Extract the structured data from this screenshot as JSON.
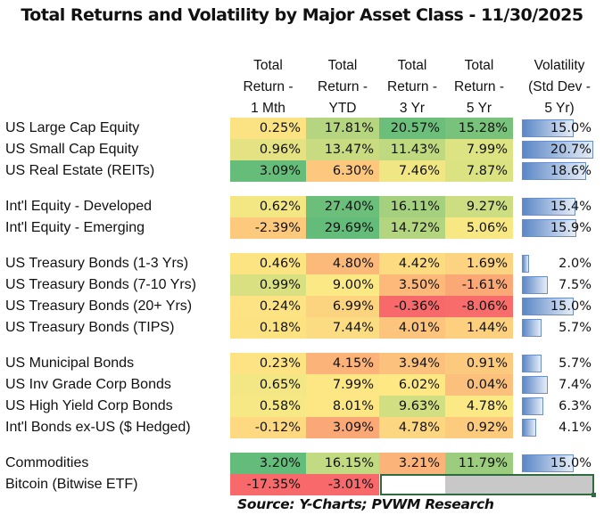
{
  "title": "Total Returns and Volatility by Major Asset Class - 11/30/2025",
  "headers": [
    {
      "l1": "Total",
      "l2": "Return -",
      "l3": "1 Mth"
    },
    {
      "l1": "Total",
      "l2": "Return -",
      "l3": "YTD"
    },
    {
      "l1": "Total",
      "l2": "Return -",
      "l3": "3 Yr"
    },
    {
      "l1": "Total",
      "l2": "Return -",
      "l3": "5 Yr"
    },
    {
      "l1": "Volatility",
      "l2": "(Std Dev -",
      "l3": "5 Yr)"
    }
  ],
  "rows": [
    {
      "label": "US Large Cap Equity",
      "m1": "0.25%",
      "ytd": "17.81%",
      "y3": "20.57%",
      "y5": "15.28%",
      "vol": "15.0%",
      "vol_value": 15.0,
      "colors": [
        "#fbe383",
        "#b5d580",
        "#6cbf7b",
        "#78c27c"
      ]
    },
    {
      "label": "US Small Cap Equity",
      "m1": "0.96%",
      "ytd": "13.47%",
      "y3": "11.43%",
      "y5": "7.99%",
      "vol": "20.7%",
      "vol_value": 20.7,
      "colors": [
        "#e4e283",
        "#c8db81",
        "#bfd981",
        "#dde282"
      ]
    },
    {
      "label": "US Real Estate (REITs)",
      "m1": "3.09%",
      "ytd": "6.30%",
      "y3": "7.46%",
      "y5": "7.87%",
      "vol": "18.6%",
      "vol_value": 18.6,
      "colors": [
        "#66bd7a",
        "#fdc77d",
        "#f0e684",
        "#dbe282"
      ]
    },
    {
      "label": "Int'l Equity - Developed",
      "m1": "0.62%",
      "ytd": "27.40%",
      "y3": "16.11%",
      "y5": "9.27%",
      "vol": "15.4%",
      "vol_value": 15.4,
      "colors": [
        "#f3e784",
        "#6cbf7b",
        "#a5d17f",
        "#cddd82"
      ]
    },
    {
      "label": "Int'l Equity - Emerging",
      "m1": "-2.39%",
      "ytd": "29.69%",
      "y3": "14.72%",
      "y5": "5.06%",
      "vol": "15.9%",
      "vol_value": 15.9,
      "colors": [
        "#fcc97d",
        "#63bc7a",
        "#b4d580",
        "#f7e884"
      ]
    },
    {
      "label": "US Treasury Bonds (1-3 Yrs)",
      "m1": "0.46%",
      "ytd": "4.80%",
      "y3": "4.42%",
      "y5": "1.69%",
      "vol": "2.0%",
      "vol_value": 2.0,
      "colors": [
        "#fde483",
        "#fbb97a",
        "#fddb81",
        "#fcd380"
      ]
    },
    {
      "label": "US Treasury Bonds (7-10 Yrs)",
      "m1": "0.99%",
      "ytd": "9.00%",
      "y3": "3.50%",
      "y5": "-1.61%",
      "vol": "7.5%",
      "vol_value": 7.5,
      "colors": [
        "#d8e082",
        "#fbe985",
        "#fcb97a",
        "#fba877"
      ]
    },
    {
      "label": "US Treasury Bonds (20+ Yrs)",
      "m1": "0.24%",
      "ytd": "6.99%",
      "y3": "-0.36%",
      "y5": "-8.06%",
      "vol": "15.0%",
      "vol_value": 15.0,
      "colors": [
        "#fde383",
        "#fcd37f",
        "#f8696b",
        "#f86d6c"
      ]
    },
    {
      "label": "US Treasury Bonds (TIPS)",
      "m1": "0.18%",
      "ytd": "7.44%",
      "y3": "4.01%",
      "y5": "1.44%",
      "vol": "5.7%",
      "vol_value": 5.7,
      "colors": [
        "#fde282",
        "#fcdc82",
        "#fcc47c",
        "#fcd07f"
      ]
    },
    {
      "label": "US Municipal Bonds",
      "m1": "0.23%",
      "ytd": "4.15%",
      "y3": "3.94%",
      "y5": "0.91%",
      "vol": "5.7%",
      "vol_value": 5.7,
      "colors": [
        "#fde383",
        "#fbb379",
        "#fcc17c",
        "#fcca7e"
      ]
    },
    {
      "label": "US Inv Grade Corp Bonds",
      "m1": "0.65%",
      "ytd": "7.99%",
      "y3": "6.02%",
      "y5": "0.04%",
      "vol": "7.4%",
      "vol_value": 7.4,
      "colors": [
        "#f2e784",
        "#fce784",
        "#fde884",
        "#fbc17c"
      ]
    },
    {
      "label": "US High Yield Corp Bonds",
      "m1": "0.58%",
      "ytd": "8.01%",
      "y3": "9.63%",
      "y5": "4.78%",
      "vol": "6.3%",
      "vol_value": 6.3,
      "colors": [
        "#f6e884",
        "#fce784",
        "#d2de82",
        "#fae984"
      ]
    },
    {
      "label": "Int'l Bonds ex-US ($ Hedged)",
      "m1": "-0.12%",
      "ytd": "3.09%",
      "y3": "4.78%",
      "y5": "0.92%",
      "vol": "4.1%",
      "vol_value": 4.1,
      "colors": [
        "#fed982",
        "#fba877",
        "#fcd680",
        "#fccb7e"
      ]
    },
    {
      "label": "Commodities",
      "m1": "3.20%",
      "ytd": "16.15%",
      "y3": "3.21%",
      "y5": "11.79%",
      "vol": "15.0%",
      "vol_value": 15.0,
      "colors": [
        "#63bc7a",
        "#c2da81",
        "#fbb379",
        "#9ccd7e"
      ]
    },
    {
      "label": "Bitcoin (Bitwise ETF)",
      "m1": "-17.35%",
      "ytd": "-3.01%",
      "y3": "",
      "y5": "",
      "vol": "",
      "vol_value": null,
      "colors": [
        "#f8696b",
        "#f8696b",
        null,
        null
      ]
    }
  ],
  "source": "Source:  Y-Charts; PVWM Research",
  "vol_scale_max": 20.7
}
